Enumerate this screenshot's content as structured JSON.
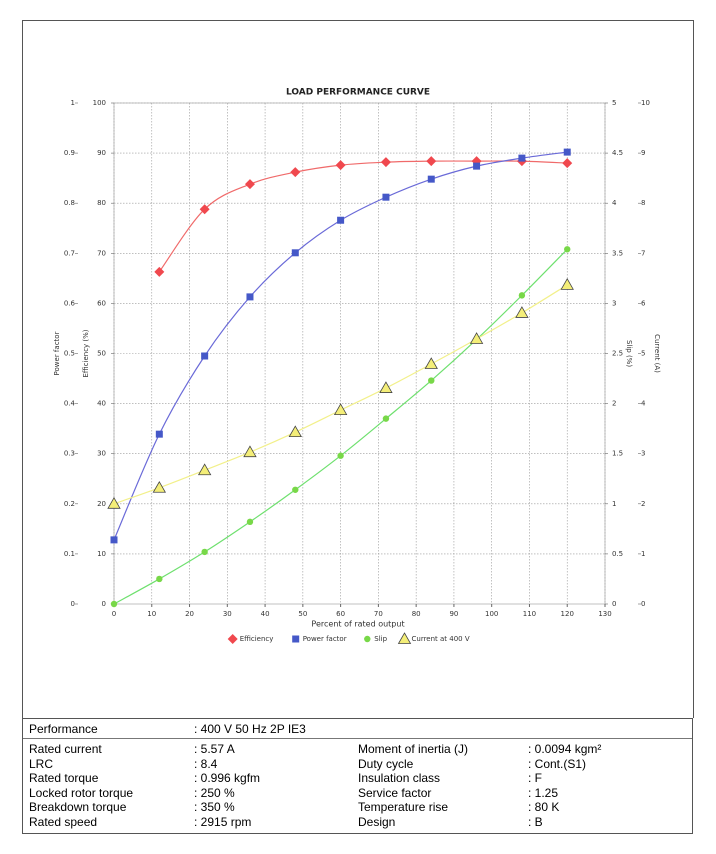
{
  "chart_data": {
    "type": "line",
    "title": "LOAD PERFORMANCE CURVE",
    "xlabel": "Percent of rated output",
    "x": [
      0,
      12,
      24,
      36,
      48,
      60,
      72,
      84,
      96,
      108,
      120
    ],
    "xlim": [
      0,
      130
    ],
    "xticks": [
      0,
      10,
      20,
      30,
      40,
      50,
      60,
      70,
      80,
      90,
      100,
      110,
      120,
      130
    ],
    "grid": true,
    "axes": [
      {
        "title": "Power factor",
        "lim": [
          0,
          1
        ],
        "ticks": [
          0,
          0.1,
          0.2,
          0.3,
          0.4,
          0.5,
          0.6,
          0.7,
          0.8,
          0.9,
          1
        ]
      },
      {
        "title": "Efficiency (%)",
        "lim": [
          0,
          100
        ],
        "ticks": [
          0,
          10,
          20,
          30,
          40,
          50,
          60,
          70,
          80,
          90,
          100
        ]
      },
      {
        "title": "Slip (%)",
        "lim": [
          0,
          5
        ],
        "ticks": [
          0,
          0.5,
          1,
          1.5,
          2,
          2.5,
          3,
          3.5,
          4,
          4.5,
          5
        ]
      },
      {
        "title": "Current (A)",
        "lim": [
          0,
          10
        ],
        "ticks": [
          0,
          1,
          2,
          3,
          4,
          5,
          6,
          7,
          8,
          9,
          10
        ]
      }
    ],
    "series": [
      {
        "name": "Efficiency",
        "axis": 1,
        "marker": "diamond",
        "color": "#f0484e",
        "line_color": "#f06a6a",
        "values": [
          null,
          66.3,
          78.8,
          83.8,
          86.2,
          87.6,
          88.2,
          88.4,
          88.4,
          88.4,
          88.0
        ]
      },
      {
        "name": "Power factor",
        "axis": 0,
        "marker": "square",
        "color": "#4558c8",
        "line_color": "#6a6ad8",
        "values": [
          0.128,
          0.339,
          0.495,
          0.613,
          0.701,
          0.766,
          0.812,
          0.848,
          0.874,
          0.89,
          0.902
        ]
      },
      {
        "name": "Slip",
        "axis": 2,
        "marker": "circle",
        "color": "#78d848",
        "line_color": "#6ee06e",
        "values": [
          0,
          0.25,
          0.52,
          0.82,
          1.14,
          1.48,
          1.85,
          2.23,
          2.64,
          3.08,
          3.54
        ]
      },
      {
        "name": "Current at 400 V",
        "axis": 3,
        "marker": "triangle",
        "color": "#f4ee78",
        "line_color": "#f2f08a",
        "values": [
          2.0,
          2.32,
          2.67,
          3.03,
          3.43,
          3.87,
          4.31,
          4.79,
          5.29,
          5.81,
          6.37
        ]
      }
    ]
  },
  "table": {
    "performance": [
      "Performance",
      ": 400 V 50 Hz 2P IE3"
    ],
    "rows": [
      [
        "Rated current",
        ": 5.57 A",
        "Moment of inertia (J)",
        ": 0.0094 kgm²"
      ],
      [
        "LRC",
        ": 8.4",
        "Duty cycle",
        ": Cont.(S1)"
      ],
      [
        "Rated torque",
        ": 0.996 kgfm",
        "Insulation class",
        ": F"
      ],
      [
        "Locked rotor torque",
        ": 250 %",
        "Service factor",
        ": 1.25"
      ],
      [
        "Breakdown torque",
        ": 350 %",
        "Temperature rise",
        ": 80 K"
      ],
      [
        "Rated speed",
        ": 2915 rpm",
        "Design",
        ": B"
      ]
    ]
  }
}
